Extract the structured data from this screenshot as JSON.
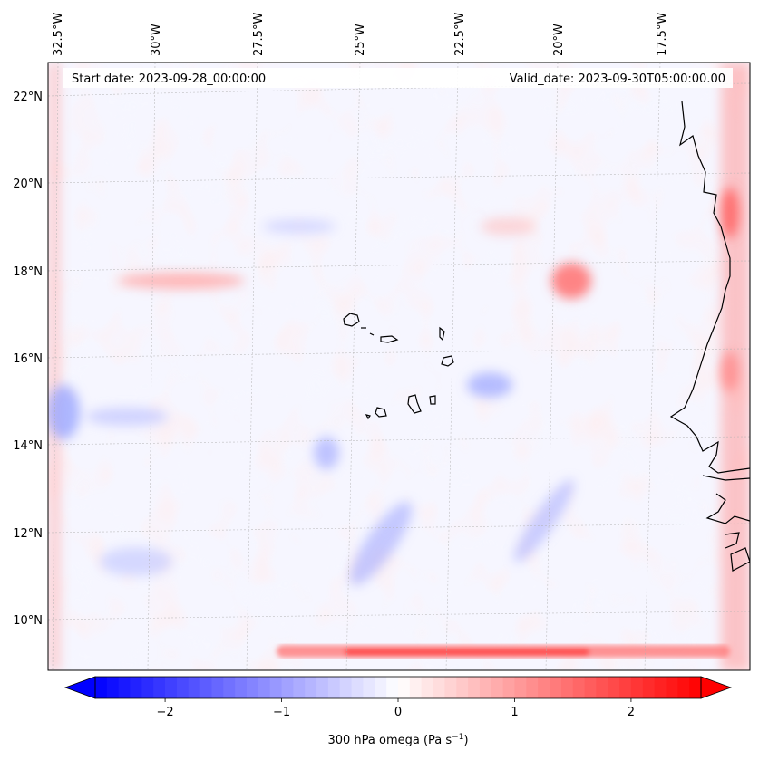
{
  "map": {
    "start_date_label": "Start date: 2023-09-28_00:00:00",
    "valid_date_label": "Valid_date: 2023-09-30T05:00:00.00",
    "lon_ticks": [
      "32.5°W",
      "30°W",
      "27.5°W",
      "25°W",
      "22.5°W",
      "20°W",
      "17.5°W"
    ],
    "lat_ticks": [
      "22°N",
      "20°N",
      "18°N",
      "16°N",
      "14°N",
      "12°N",
      "10°N"
    ],
    "field": "300 hPa omega",
    "colors": {
      "negative": "#0000ff",
      "neutral": "#ffffff",
      "positive": "#ff0000",
      "coast": "#000000"
    }
  },
  "colorbar": {
    "ticks": [
      "−2",
      "−1",
      "0",
      "1",
      "2"
    ],
    "label_main": "300 hPa omega (Pa s",
    "label_exp": "−1",
    "label_close": ")",
    "range": [
      -2.6,
      2.6
    ],
    "tick_values": [
      -2,
      -1,
      0,
      1,
      2
    ]
  }
}
